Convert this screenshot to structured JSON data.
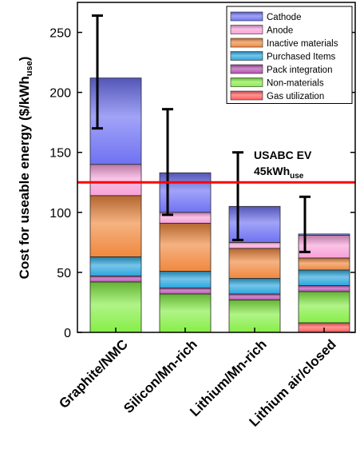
{
  "chart_data": {
    "type": "bar",
    "stacked": true,
    "ylabel_main": "Cost for useable energy  ($/kWh",
    "ylabel_sub": "use",
    "ylabel_close": ")",
    "ylim": [
      0,
      275
    ],
    "yticks": [
      0,
      50,
      100,
      150,
      200,
      250
    ],
    "categories": [
      "Graphite/NMC",
      "Silicon/Mn-rich",
      "Lithium/Mn-rich",
      "Lithium air/closed"
    ],
    "series": [
      {
        "name": "Gas utilization",
        "color": "#ff5a5a",
        "values": [
          0,
          0,
          0,
          8
        ]
      },
      {
        "name": "Non-materials",
        "color": "#86ee46",
        "values": [
          42,
          32,
          27,
          26
        ]
      },
      {
        "name": "Pack integration",
        "color": "#b44fb0",
        "values": [
          5,
          5,
          5,
          5
        ]
      },
      {
        "name": "Purchased Items",
        "color": "#2aa6dd",
        "values": [
          16,
          14,
          13,
          13
        ]
      },
      {
        "name": "Inactive materials",
        "color": "#f0883e",
        "values": [
          51,
          40,
          25,
          10
        ]
      },
      {
        "name": "Anode",
        "color": "#f7a1d8",
        "values": [
          26,
          9,
          5,
          19
        ]
      },
      {
        "name": "Cathode",
        "color": "#6f72f2",
        "values": [
          72,
          33,
          30,
          1
        ]
      }
    ],
    "totals": [
      212,
      133,
      105,
      82
    ],
    "error_bars": [
      {
        "low": 170,
        "high": 264
      },
      {
        "low": 98,
        "high": 186
      },
      {
        "low": 77,
        "high": 150
      },
      {
        "low": 67,
        "high": 113
      }
    ],
    "reference_line": {
      "value": 125,
      "color": "#ff0000",
      "label_line1": "USABC EV",
      "label_line2_main": "45kWh",
      "label_line2_sub": "use"
    },
    "legend": {
      "placement": "top-right",
      "order": [
        "Cathode",
        "Anode",
        "Inactive materials",
        "Purchased Items",
        "Pack integration",
        "Non-materials",
        "Gas utilization"
      ]
    },
    "grid": false
  }
}
